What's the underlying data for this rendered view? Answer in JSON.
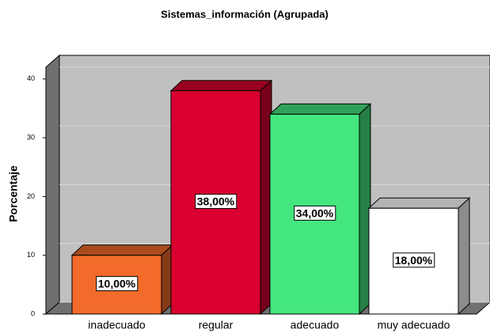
{
  "chart_data": {
    "type": "bar3d",
    "title": "Sistemas_información (Agrupada)",
    "y_label": "Porcentaje",
    "categories": [
      "inadecuado",
      "regular",
      "adecuado",
      "muy adecuado"
    ],
    "values": [
      10,
      38,
      34,
      18
    ],
    "value_labels": [
      "10,00%",
      "38,00%",
      "34,00%",
      "18,00%"
    ],
    "colors": [
      "#f26b2a",
      "#d9002f",
      "#44e67f",
      "#ffffff"
    ],
    "ylim": [
      0,
      42
    ],
    "yticks": [
      0,
      10,
      20,
      30,
      40
    ],
    "grid": true
  }
}
